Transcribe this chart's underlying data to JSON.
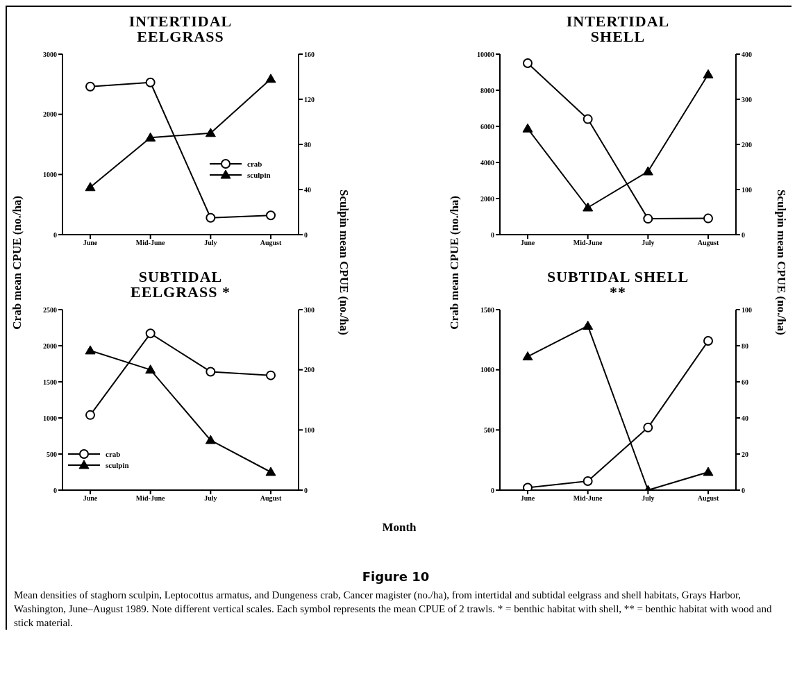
{
  "chart_data": [
    {
      "type": "line",
      "title": "INTERTIDAL EELGRASS",
      "ylabel": "Crab mean CPUE (no./ha)",
      "y2label": "Sculpin mean CPUE (no./ha)",
      "categories": [
        "June",
        "Mid-June",
        "July",
        "August"
      ],
      "ylim": [
        0,
        3000
      ],
      "yticks": [
        0,
        1000,
        2000,
        3000
      ],
      "y2lim": [
        0,
        160
      ],
      "y2ticks": [
        0,
        40,
        80,
        120,
        160
      ],
      "legend": "right",
      "series": [
        {
          "name": "crab",
          "color": "#000000",
          "marker": "circle",
          "values": [
            2460,
            2530,
            280,
            320
          ]
        },
        {
          "name": "sculpin",
          "color": "#000000",
          "marker": "triangle",
          "axis": "y2",
          "values": [
            42,
            86,
            90,
            138
          ]
        }
      ]
    },
    {
      "type": "line",
      "title": "INTERTIDAL SHELL",
      "ylabel": "Crab mean CPUE (no./ha)",
      "y2label": "Sculpin mean CPUE (no./ha)",
      "categories": [
        "June",
        "Mid-June",
        "July",
        "August"
      ],
      "ylim": [
        0,
        10000
      ],
      "yticks": [
        0,
        2000,
        4000,
        6000,
        8000,
        10000
      ],
      "y2lim": [
        0,
        400
      ],
      "y2ticks": [
        0,
        100,
        200,
        300,
        400
      ],
      "series": [
        {
          "color": "#000000",
          "marker": "circle",
          "values": [
            9500,
            6400,
            880,
            900
          ]
        },
        {
          "color": "#000000",
          "marker": "triangle",
          "axis": "y2",
          "values": [
            235,
            60,
            140,
            355
          ]
        }
      ]
    },
    {
      "type": "line",
      "title": "SUBTIDAL EELGRASS *",
      "xlabel": "Month",
      "categories": [
        "June",
        "Mid-June",
        "July",
        "August"
      ],
      "ylim": [
        0,
        2500
      ],
      "yticks": [
        0,
        500,
        1000,
        1500,
        2000,
        2500
      ],
      "y2lim": [
        0,
        300
      ],
      "y2ticks": [
        0,
        100,
        200,
        300
      ],
      "legend": "bottom left",
      "series": [
        {
          "name": "crab",
          "color": "#000000",
          "marker": "circle",
          "values": [
            1040,
            2170,
            1640,
            1590
          ]
        },
        {
          "name": "sculpin",
          "color": "#000000",
          "marker": "triangle",
          "axis": "y2",
          "values": [
            232,
            200,
            83,
            30
          ]
        }
      ]
    },
    {
      "type": "line",
      "title": "SUBTIDAL SHELL **",
      "categories": [
        "June",
        "Mid-June",
        "July",
        "August"
      ],
      "ylim": [
        0,
        1500
      ],
      "yticks": [
        0,
        500,
        1000,
        1500
      ],
      "y2lim": [
        0,
        100
      ],
      "y2ticks": [
        0,
        20,
        40,
        60,
        80,
        100
      ],
      "annotations": [
        "Figure 10",
        "Mean densities of staghorn sculpin, Leptocottus armatus, and Dungeness crab, Cancer magister (no./ha), from intertidal and subtidal eelgrass and shell habitats, Grays Harbor, Washington, June–August 1989. Note different vertical scales. Each symbol represents the mean CPUE of 2 trawls. * = benthic habitat with shell, ** = benthic habitat with wood and stick material."
      ],
      "series": [
        {
          "color": "#000000",
          "marker": "circle",
          "values": [
            20,
            75,
            520,
            1240
          ]
        },
        {
          "color": "#000000",
          "marker": "triangle",
          "axis": "y2",
          "values": [
            74,
            91,
            0,
            10
          ]
        }
      ]
    }
  ]
}
